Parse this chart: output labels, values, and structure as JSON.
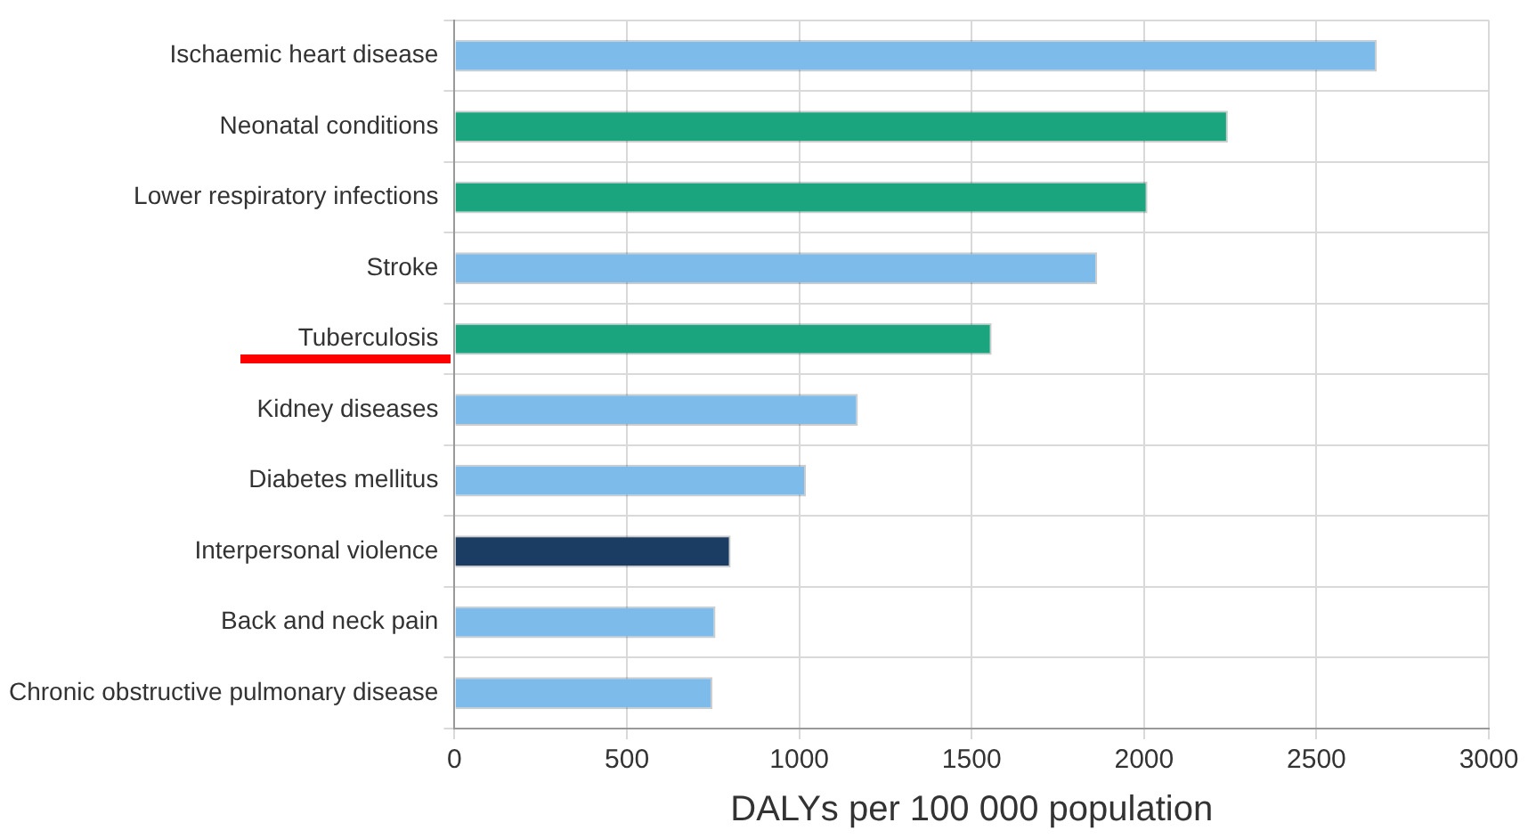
{
  "chart_data": {
    "type": "bar",
    "orientation": "horizontal",
    "xlabel": "DALYs per 100 000 population",
    "categories": [
      "Ischaemic heart disease",
      "Neonatal conditions",
      "Lower respiratory infections",
      "Stroke",
      "Tuberculosis",
      "Kidney diseases",
      "Diabetes mellitus",
      "Interpersonal violence",
      "Back and neck pain",
      "Chronic obstructive pulmonary disease"
    ],
    "values": [
      2675,
      2243,
      2010,
      1864,
      1558,
      1170,
      1019,
      801,
      757,
      748
    ],
    "colors": [
      "#7dbbea",
      "#1aa57f",
      "#1aa57f",
      "#7dbbea",
      "#1aa57f",
      "#7dbbea",
      "#7dbbea",
      "#1c3d63",
      "#7dbbea",
      "#7dbbea"
    ],
    "xlim": [
      0,
      3000
    ],
    "xticks": [
      0,
      500,
      1000,
      1500,
      2000,
      2500,
      3000
    ],
    "grid": true,
    "legend": false
  }
}
